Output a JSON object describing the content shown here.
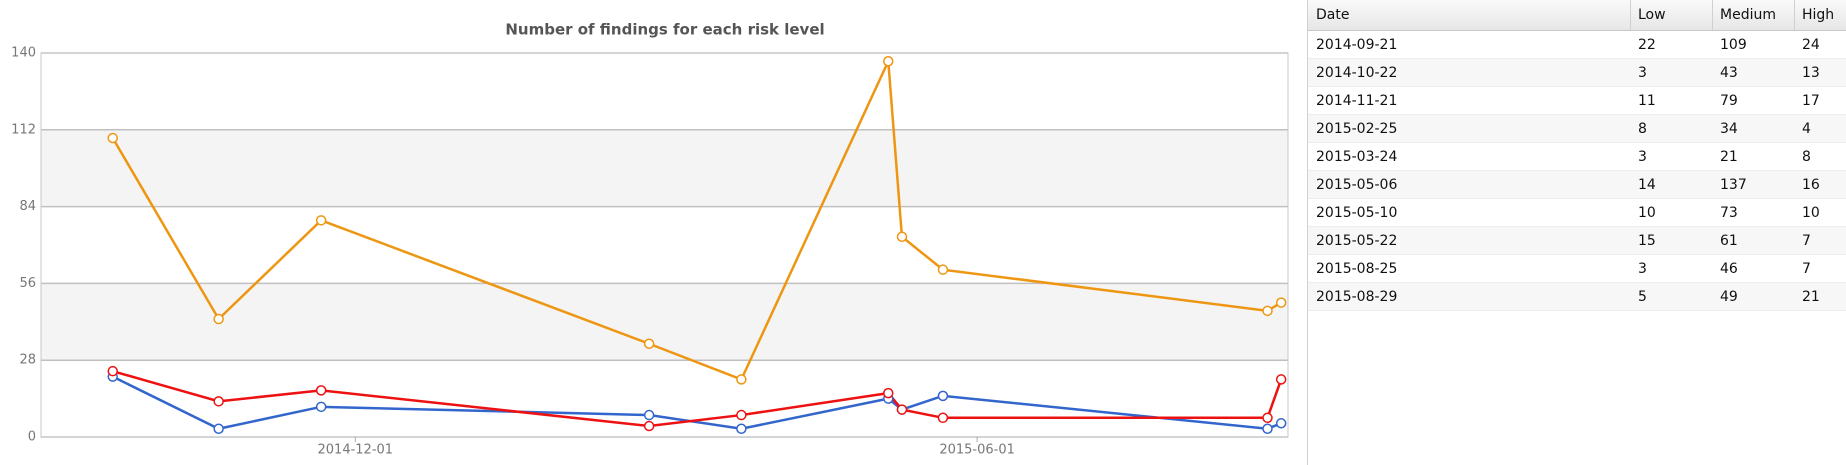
{
  "chart_data": {
    "type": "line",
    "title": "Number of findings for each risk level",
    "x": [
      "2014-09-21",
      "2014-10-22",
      "2014-11-21",
      "2015-02-25",
      "2015-03-24",
      "2015-05-06",
      "2015-05-10",
      "2015-05-22",
      "2015-08-25",
      "2015-08-29"
    ],
    "xlim": [
      "2014-08-31",
      "2015-08-31"
    ],
    "xticks": [
      "2014-12-01",
      "2015-06-01"
    ],
    "ylim": [
      0,
      140
    ],
    "yticks": [
      0,
      28,
      56,
      84,
      112,
      140
    ],
    "grid": true,
    "series": [
      {
        "name": "Low",
        "color": "#3366cc",
        "values": [
          22,
          3,
          11,
          8,
          3,
          14,
          10,
          15,
          3,
          5
        ]
      },
      {
        "name": "Medium",
        "color": "#ee9611",
        "values": [
          109,
          43,
          79,
          34,
          21,
          137,
          73,
          61,
          46,
          49
        ]
      },
      {
        "name": "High",
        "color": "#ee1111",
        "values": [
          24,
          13,
          17,
          4,
          8,
          16,
          10,
          7,
          7,
          21
        ]
      }
    ]
  },
  "table": {
    "date_header": "Date"
  }
}
